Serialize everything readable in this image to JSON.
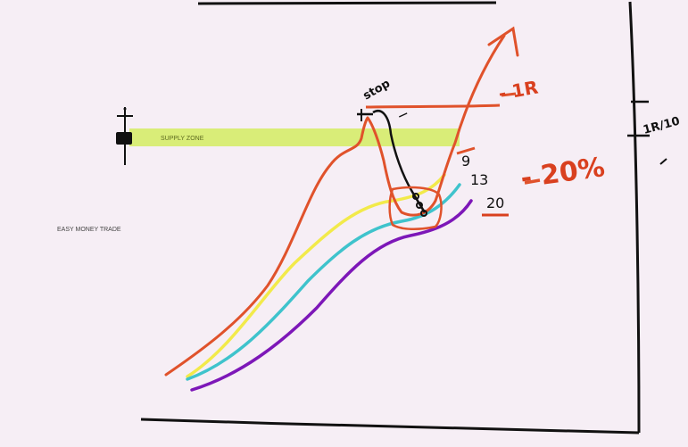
{
  "supply_zone": {
    "label": "SUPPLY ZONE",
    "color": "#d6ec6a"
  },
  "brand_text": "EASY MONEY TRADE",
  "moving_averages": [
    {
      "label": "9",
      "color": "#f2ea4a"
    },
    {
      "label": "13",
      "color": "#3fc3cc"
    },
    {
      "label": "20",
      "color": "#7d17b8"
    }
  ],
  "annotations": {
    "stop": "stop",
    "target_1r": "- 1R",
    "risk_pct": "- 20%",
    "sizing": "1R/10"
  },
  "colors": {
    "price": "#e0522b",
    "ink": "#111111",
    "accent": "#d9401f"
  }
}
